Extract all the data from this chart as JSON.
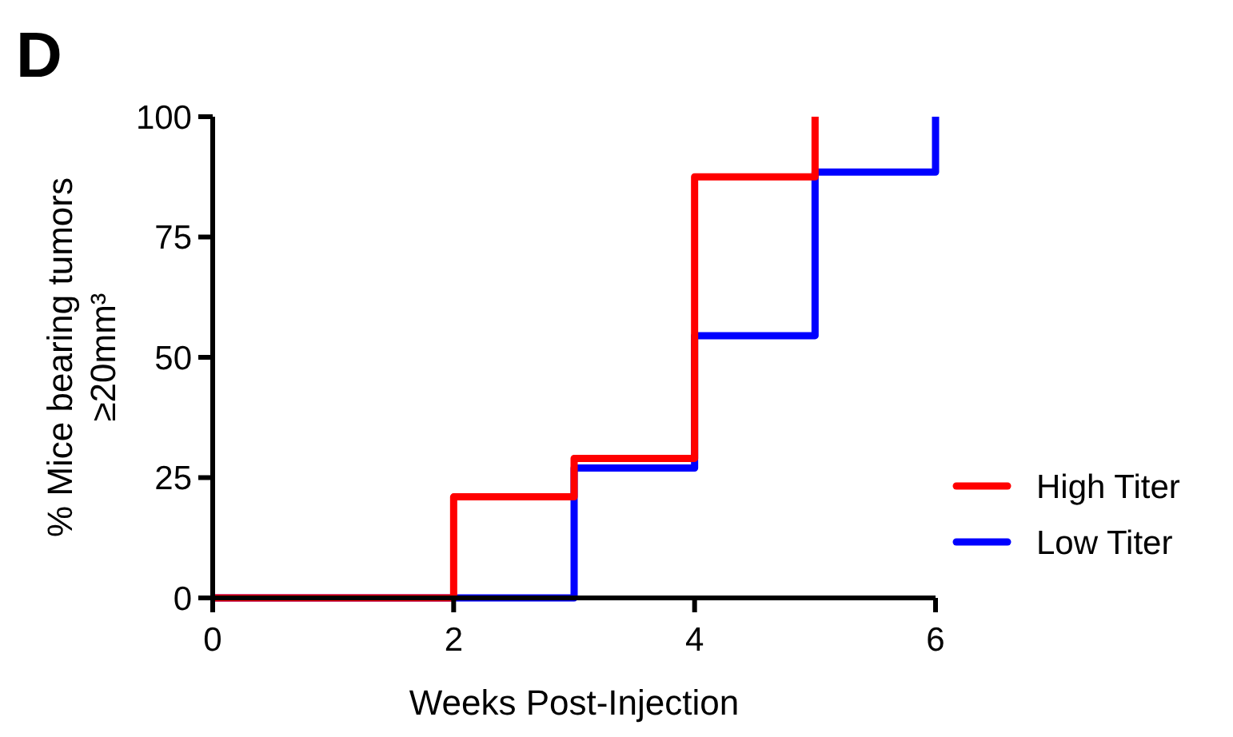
{
  "chart_data": {
    "type": "step",
    "xlabel": "Weeks Post-Injection",
    "ylabel": "% Mice bearing tumors\n≥20mm³",
    "annotations": [
      "D"
    ],
    "xlim": [
      0,
      6
    ],
    "xticks": [
      0,
      2,
      4,
      6
    ],
    "ylim": [
      0,
      100
    ],
    "yticks": [
      0,
      25,
      50,
      75,
      100
    ],
    "grid": false,
    "legend": "right",
    "line_style": "solid",
    "marker": "none",
    "series": [
      {
        "name": "Low Titer",
        "color": "#0000ff",
        "x": [
          0,
          3,
          4,
          5,
          6
        ],
        "values": [
          0,
          27,
          54.5,
          88.5,
          100
        ]
      },
      {
        "name": "High Titer",
        "color": "#ff0000",
        "x": [
          0,
          2,
          3,
          4,
          5
        ],
        "values": [
          0,
          21,
          29,
          87.5,
          100
        ]
      }
    ]
  }
}
